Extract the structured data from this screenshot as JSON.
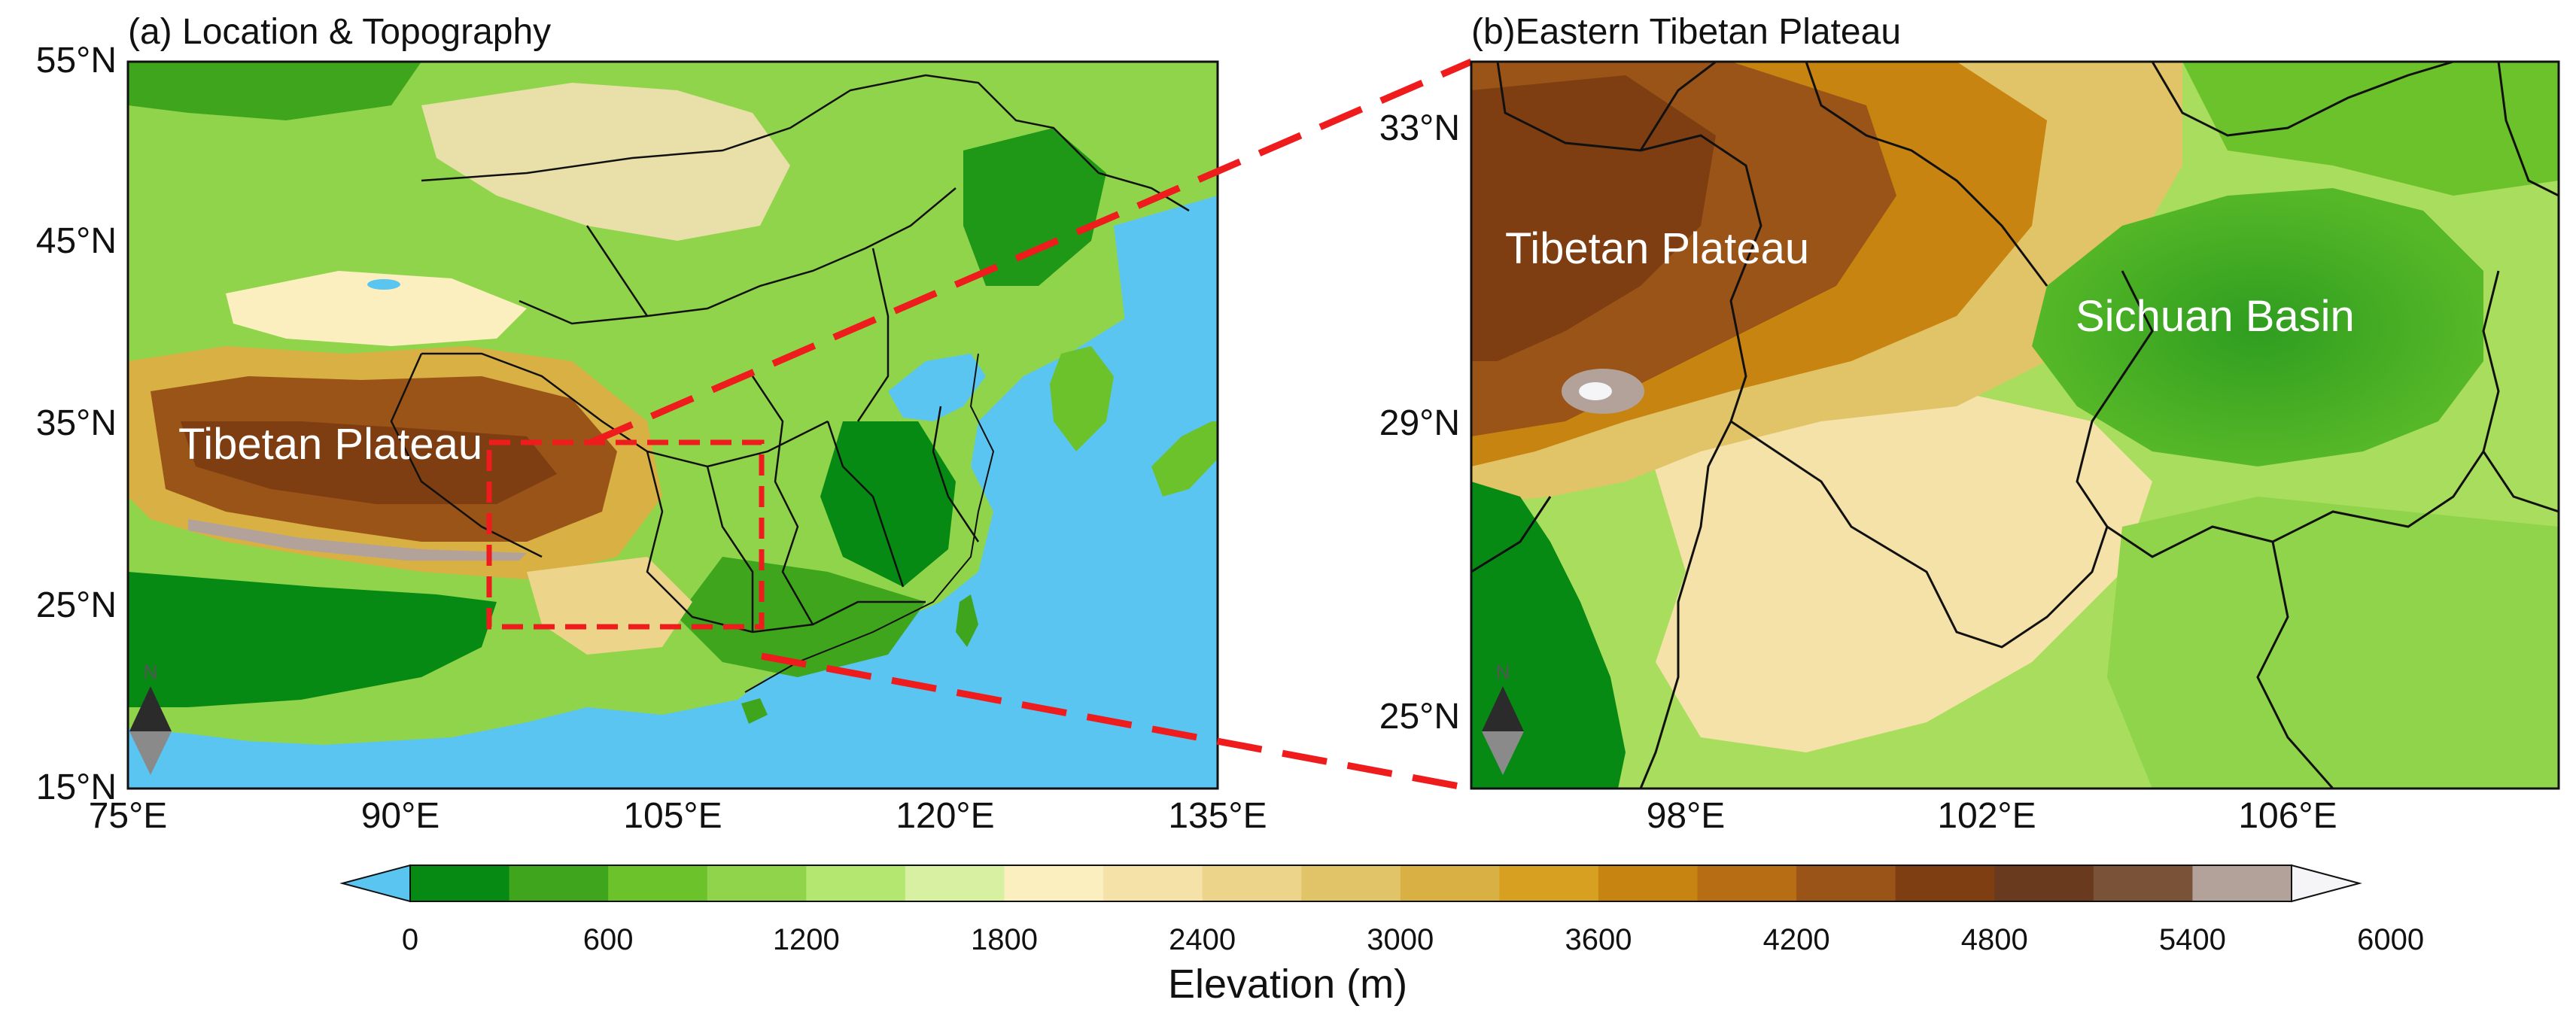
{
  "panel_a": {
    "title": "(a) Location & Topography",
    "label": "Tibetan Plateau",
    "lon_ticks": [
      "75°E",
      "90°E",
      "105°E",
      "120°E",
      "135°E"
    ],
    "lat_ticks": [
      "55°N",
      "45°N",
      "35°N",
      "25°N",
      "15°N"
    ],
    "north_arrow": "N"
  },
  "panel_b": {
    "title": "(b)Eastern Tibetan Plateau",
    "labels": [
      "Tibetan Plateau",
      "Sichuan Basin"
    ],
    "lon_ticks": [
      "98°E",
      "102°E",
      "106°E"
    ],
    "lat_ticks": [
      "33°N",
      "29°N",
      "25°N"
    ],
    "north_arrow": "N"
  },
  "colorbar": {
    "label": "Elevation (m)",
    "tick_labels": [
      "0",
      "600",
      "1200",
      "1800",
      "2400",
      "3000",
      "3600",
      "4200",
      "4800",
      "5400",
      "6000"
    ],
    "colors": [
      "#5bc5f2",
      "#078a14",
      "#3fa51c",
      "#6cc22a",
      "#8fd44a",
      "#b3e770",
      "#d7f0a2",
      "#fbefc0",
      "#f5e2a8",
      "#ecd48a",
      "#e2c468",
      "#d9b044",
      "#d7a020",
      "#c88410",
      "#b66d14",
      "#9a5418",
      "#7e3e12",
      "#6a3a1e",
      "#7a5238",
      "#b3a29a",
      "#f5f5f8"
    ]
  },
  "zoom_box_color": "#ee1c1c"
}
